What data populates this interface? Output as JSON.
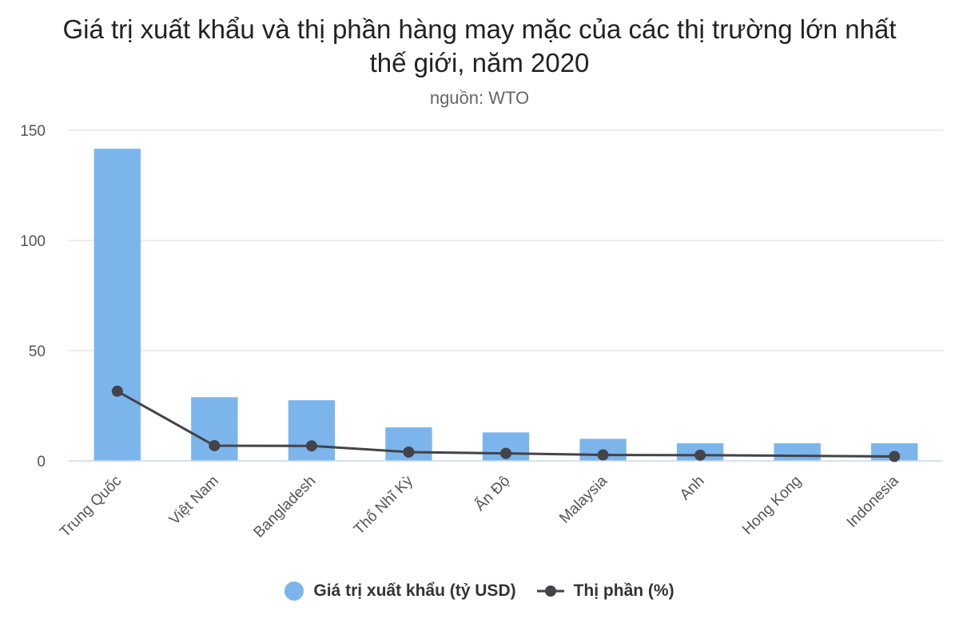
{
  "chart_data": {
    "type": "bar",
    "title": "Giá trị xuất khẩu và thị phần hàng may mặc của các thị trường lớn nhất thế giới, năm 2020",
    "subtitle": "nguồn: WTO",
    "categories": [
      "Trung Quốc",
      "Việt Nam",
      "Bangladesh",
      "Thổ Nhĩ Kỳ",
      "Ấn Độ",
      "Malaysia",
      "Anh",
      "Hong Kong",
      "Indonesia"
    ],
    "y_ticks": [
      "0",
      "50",
      "100",
      "150"
    ],
    "ylim": [
      0,
      150
    ],
    "grid": true,
    "legend_position": "bottom",
    "series": [
      {
        "name": "Giá trị xuất khẩu (tỷ USD)",
        "type": "bar",
        "color": "#7cb5ec",
        "values": [
          141.6,
          28.9,
          27.5,
          15.2,
          12.9,
          10,
          8,
          8,
          8
        ]
      },
      {
        "name": "Thị phần (%)",
        "type": "line",
        "color": "#434348",
        "values": [
          31.6,
          6.9,
          6.8,
          4,
          3.4,
          2.7,
          2.6,
          null,
          2
        ]
      }
    ]
  }
}
